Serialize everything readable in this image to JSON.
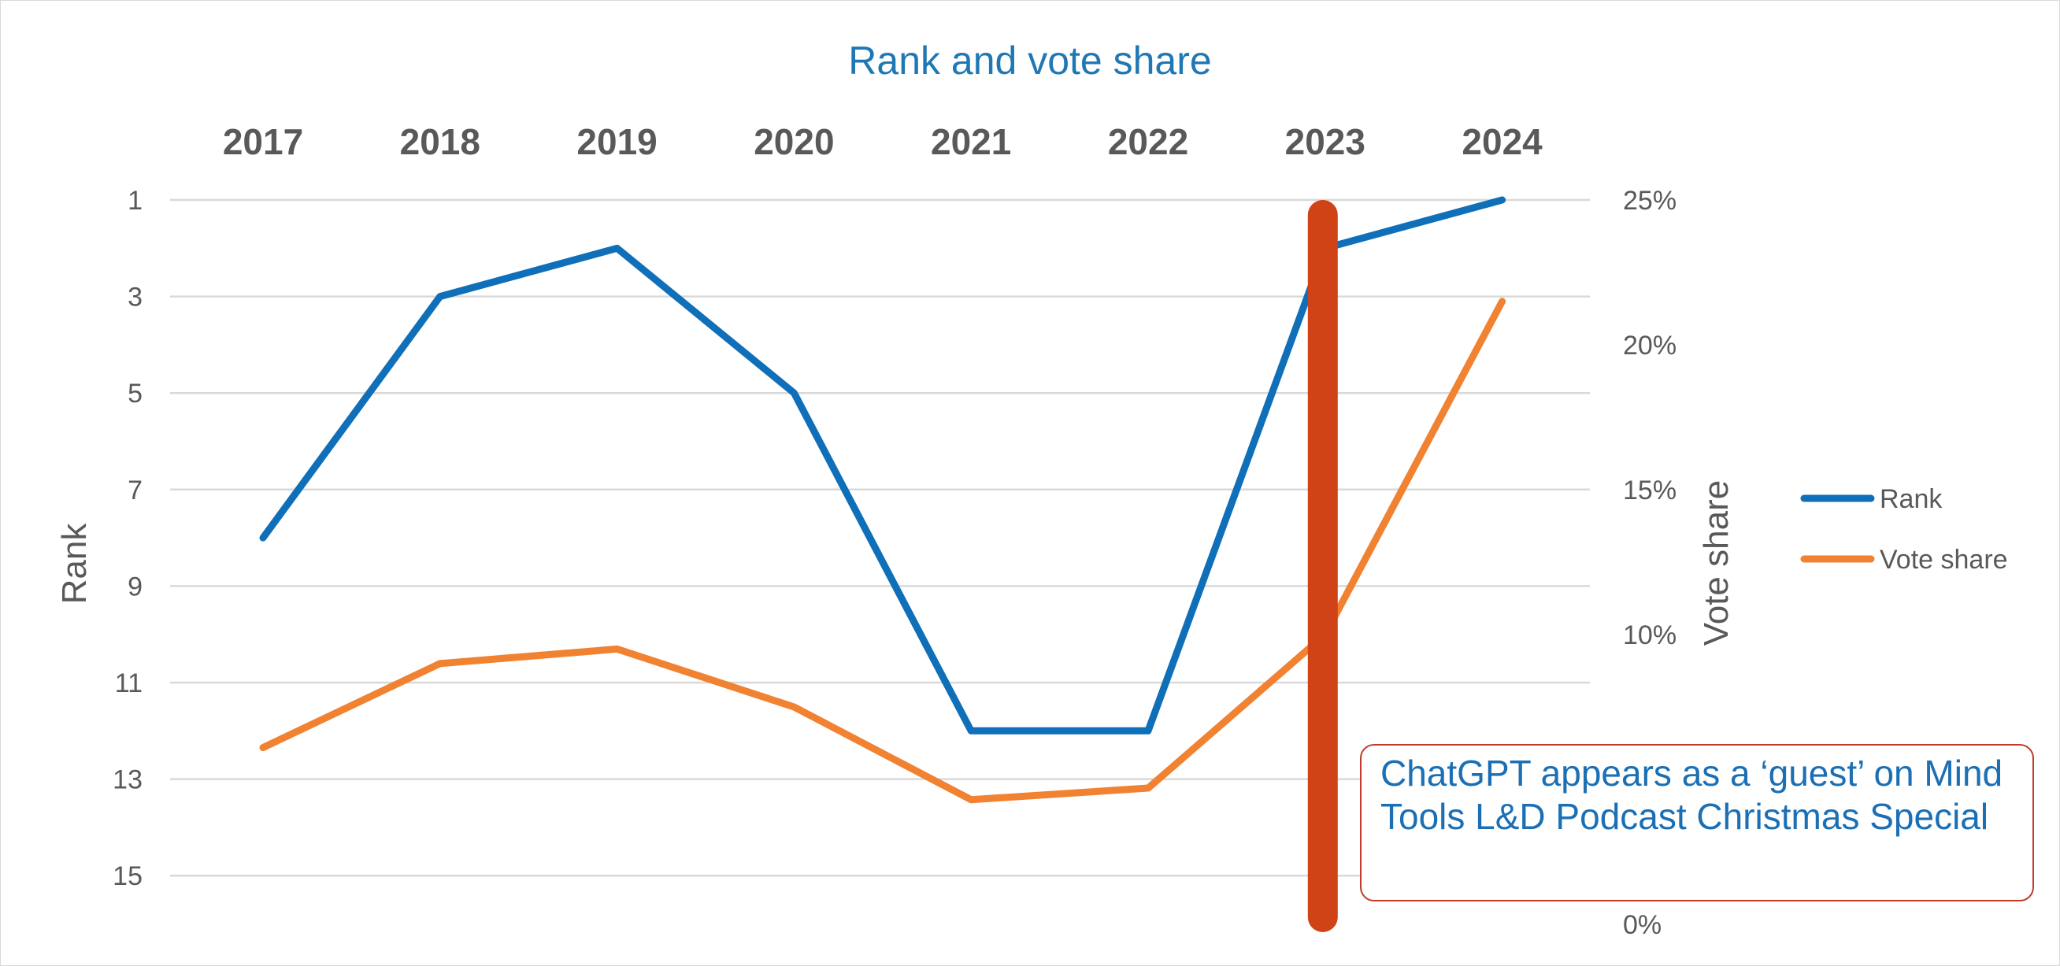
{
  "chart_data": {
    "type": "line",
    "title": "Rank and vote share",
    "categories": [
      "2017",
      "2018",
      "2019",
      "2020",
      "2021",
      "2022",
      "2023",
      "2024"
    ],
    "series": [
      {
        "name": "Rank",
        "axis": "left",
        "color": "#0f6fb8",
        "values": [
          8,
          3,
          2,
          5,
          12,
          12,
          2,
          1
        ]
      },
      {
        "name": "Vote share",
        "axis": "right",
        "color": "#f08231",
        "values": [
          0.061,
          0.09,
          0.095,
          0.075,
          0.043,
          0.047,
          0.1,
          0.215
        ]
      }
    ],
    "y_left": {
      "label": "Rank",
      "reversed": true,
      "range": [
        1,
        16
      ],
      "ticks": [
        "1",
        "3",
        "5",
        "7",
        "9",
        "11",
        "13",
        "15"
      ]
    },
    "y_right": {
      "label": "Vote share",
      "range": [
        0,
        0.25
      ],
      "ticks": [
        "25%",
        "20%",
        "15%",
        "10%",
        "0%"
      ]
    },
    "grid": true,
    "legend_position": "right",
    "marker": {
      "category": "2023",
      "color": "#d04316"
    },
    "annotation": "ChatGPT appears as a ‘guest’ on Mind Tools L&D Podcast Christmas Special"
  }
}
